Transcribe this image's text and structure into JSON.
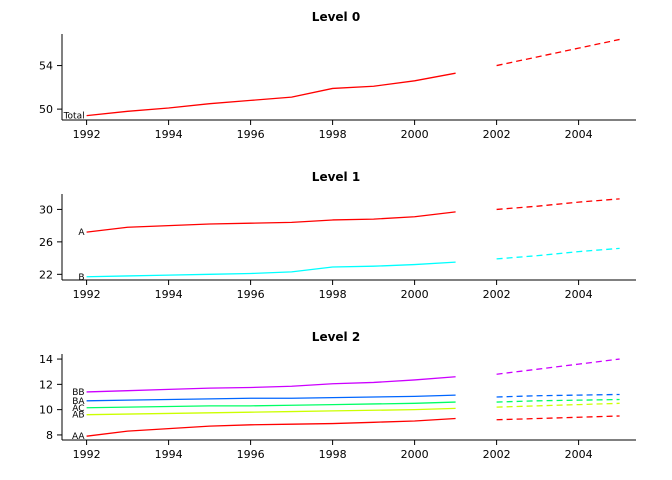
{
  "figure_name": "hierarchical-time-series-plot",
  "chart_data": {
    "type": "line",
    "charts": [
      {
        "title": "Level 0",
        "xlabel": "",
        "ylabel": "",
        "xlim": [
          1991.4,
          2005.4
        ],
        "ylim": [
          49.0,
          56.9
        ],
        "xticks": [
          1992,
          1994,
          1996,
          1998,
          2000,
          2002,
          2004
        ],
        "yticks": [
          50,
          54
        ],
        "x_hist": [
          1992,
          1993,
          1994,
          1995,
          1996,
          1997,
          1998,
          1999,
          2000,
          2001
        ],
        "x_fc": [
          2002,
          2003,
          2004,
          2005
        ],
        "series": [
          {
            "name": "Total",
            "label": "Total",
            "color": "#FF0000",
            "hist": [
              49.4,
              49.8,
              50.1,
              50.5,
              50.8,
              51.1,
              51.9,
              52.1,
              52.6,
              53.3
            ],
            "fc": [
              54.0,
              54.8,
              55.6,
              56.4
            ]
          }
        ]
      },
      {
        "title": "Level 1",
        "xlabel": "",
        "ylabel": "",
        "xlim": [
          1991.4,
          2005.4
        ],
        "ylim": [
          21.3,
          31.9
        ],
        "xticks": [
          1992,
          1994,
          1996,
          1998,
          2000,
          2002,
          2004
        ],
        "yticks": [
          22,
          26,
          30
        ],
        "x_hist": [
          1992,
          1993,
          1994,
          1995,
          1996,
          1997,
          1998,
          1999,
          2000,
          2001
        ],
        "x_fc": [
          2002,
          2003,
          2004,
          2005
        ],
        "series": [
          {
            "name": "A",
            "label": "A",
            "color": "#FF0000",
            "hist": [
              27.2,
              27.8,
              28.0,
              28.2,
              28.3,
              28.4,
              28.7,
              28.8,
              29.1,
              29.7
            ],
            "fc": [
              30.0,
              30.4,
              30.9,
              31.3
            ]
          },
          {
            "name": "B",
            "label": "B",
            "color": "#00FFFF",
            "hist": [
              21.7,
              21.8,
              21.9,
              22.0,
              22.1,
              22.3,
              22.9,
              23.0,
              23.2,
              23.5
            ],
            "fc": [
              23.9,
              24.3,
              24.8,
              25.2
            ]
          }
        ]
      },
      {
        "title": "Level 2",
        "xlabel": "",
        "ylabel": "",
        "xlim": [
          1991.4,
          2005.4
        ],
        "ylim": [
          7.6,
          14.4
        ],
        "xticks": [
          1992,
          1994,
          1996,
          1998,
          2000,
          2002,
          2004
        ],
        "yticks": [
          8,
          10,
          12,
          14
        ],
        "x_hist": [
          1992,
          1993,
          1994,
          1995,
          1996,
          1997,
          1998,
          1999,
          2000,
          2001
        ],
        "x_fc": [
          2002,
          2003,
          2004,
          2005
        ],
        "series": [
          {
            "name": "AA",
            "label": "AA",
            "color": "#FF0000",
            "hist": [
              7.9,
              8.3,
              8.5,
              8.7,
              8.8,
              8.85,
              8.9,
              9.0,
              9.1,
              9.3
            ],
            "fc": [
              9.2,
              9.3,
              9.4,
              9.5
            ]
          },
          {
            "name": "AB",
            "label": "AB",
            "color": "#CCFF00",
            "hist": [
              9.6,
              9.65,
              9.7,
              9.75,
              9.8,
              9.85,
              9.9,
              9.95,
              10.0,
              10.1
            ],
            "fc": [
              10.2,
              10.3,
              10.4,
              10.5
            ]
          },
          {
            "name": "AC",
            "label": "AC",
            "color": "#00FF66",
            "hist": [
              10.15,
              10.2,
              10.25,
              10.3,
              10.3,
              10.35,
              10.4,
              10.45,
              10.5,
              10.6
            ],
            "fc": [
              10.6,
              10.7,
              10.75,
              10.8
            ]
          },
          {
            "name": "BA",
            "label": "BA",
            "color": "#0066FF",
            "hist": [
              10.7,
              10.75,
              10.8,
              10.85,
              10.9,
              10.9,
              10.95,
              11.0,
              11.05,
              11.15
            ],
            "fc": [
              11.0,
              11.1,
              11.15,
              11.2
            ]
          },
          {
            "name": "BB",
            "label": "BB",
            "color": "#CC00FF",
            "hist": [
              11.4,
              11.5,
              11.6,
              11.7,
              11.75,
              11.85,
              12.05,
              12.15,
              12.35,
              12.6
            ],
            "fc": [
              12.8,
              13.2,
              13.6,
              14.0
            ]
          }
        ]
      }
    ]
  },
  "style": {
    "axis_color": "#000000",
    "background": "#ffffff",
    "forecast_linestyle": "dashed"
  }
}
